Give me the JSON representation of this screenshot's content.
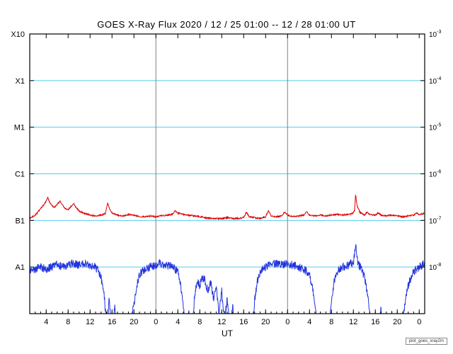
{
  "chart_data": {
    "type": "line",
    "title": "GOES X-Ray Flux   2020 / 12 / 25   01:00 -- 12 / 28   01:00  UT",
    "xlabel": "UT",
    "watermark": "plot_goes_xray2m",
    "x_range_hours": [
      0,
      72
    ],
    "y_log_range": [
      -3,
      -9
    ],
    "grid": "on",
    "legend": "none",
    "colors": {
      "red_series": "#dd0000",
      "blue_series": "#2233dd",
      "grid": "#55ccee",
      "day_line": "#808080",
      "axis": "#000000",
      "background": "#ffffff"
    },
    "y_ticks": [
      {
        "exp": "-3",
        "flux_class": "X10"
      },
      {
        "exp": "-4",
        "flux_class": "X1"
      },
      {
        "exp": "-5",
        "flux_class": "M1"
      },
      {
        "exp": "-6",
        "flux_class": "C1"
      },
      {
        "exp": "-7",
        "flux_class": "B1"
      },
      {
        "exp": "-8",
        "flux_class": "A1"
      }
    ],
    "x_ticks": [
      {
        "t": 3,
        "label": "4"
      },
      {
        "t": 7,
        "label": "8"
      },
      {
        "t": 11,
        "label": "12"
      },
      {
        "t": 15,
        "label": "16"
      },
      {
        "t": 19,
        "label": "20"
      },
      {
        "t": 23,
        "label": "0"
      },
      {
        "t": 27,
        "label": "4"
      },
      {
        "t": 31,
        "label": "8"
      },
      {
        "t": 35,
        "label": "12"
      },
      {
        "t": 39,
        "label": "16"
      },
      {
        "t": 43,
        "label": "20"
      },
      {
        "t": 47,
        "label": "0"
      },
      {
        "t": 51,
        "label": "4"
      },
      {
        "t": 55,
        "label": "8"
      },
      {
        "t": 59,
        "label": "12"
      },
      {
        "t": 63,
        "label": "16"
      },
      {
        "t": 67,
        "label": "20"
      },
      {
        "t": 71,
        "label": "0"
      }
    ],
    "day_boundaries": [
      23,
      47
    ],
    "series": [
      {
        "name": "red_line",
        "color_key": "red_series",
        "noise_decades": 0.015,
        "anchors": [
          [
            0,
            1.1e-07
          ],
          [
            0.5,
            1.2e-07
          ],
          [
            1,
            1.3e-07
          ],
          [
            1.5,
            1.5e-07
          ],
          [
            2,
            1.8e-07
          ],
          [
            2.5,
            2.1e-07
          ],
          [
            3,
            2.6e-07
          ],
          [
            3.3,
            3.1e-07
          ],
          [
            3.6,
            2.5e-07
          ],
          [
            4,
            2.1e-07
          ],
          [
            4.5,
            1.9e-07
          ],
          [
            5,
            2.2e-07
          ],
          [
            5.5,
            2.6e-07
          ],
          [
            6,
            2.1e-07
          ],
          [
            6.5,
            1.8e-07
          ],
          [
            7,
            1.7e-07
          ],
          [
            7.5,
            2e-07
          ],
          [
            8,
            2.3e-07
          ],
          [
            8.4,
            1.9e-07
          ],
          [
            9,
            1.6e-07
          ],
          [
            10,
            1.4e-07
          ],
          [
            11,
            1.3e-07
          ],
          [
            12,
            1.25e-07
          ],
          [
            13,
            1.3e-07
          ],
          [
            13.8,
            1.4e-07
          ],
          [
            14.2,
            2.4e-07
          ],
          [
            14.6,
            1.7e-07
          ],
          [
            15,
            1.45e-07
          ],
          [
            16,
            1.3e-07
          ],
          [
            17,
            1.25e-07
          ],
          [
            18,
            1.35e-07
          ],
          [
            19,
            1.3e-07
          ],
          [
            20,
            1.2e-07
          ],
          [
            21,
            1.2e-07
          ],
          [
            22,
            1.25e-07
          ],
          [
            23,
            1.2e-07
          ],
          [
            24,
            1.25e-07
          ],
          [
            25,
            1.3e-07
          ],
          [
            26,
            1.35e-07
          ],
          [
            26.5,
            1.6e-07
          ],
          [
            27,
            1.45e-07
          ],
          [
            28,
            1.35e-07
          ],
          [
            29,
            1.3e-07
          ],
          [
            30,
            1.25e-07
          ],
          [
            31,
            1.2e-07
          ],
          [
            32,
            1.15e-07
          ],
          [
            33,
            1.1e-07
          ],
          [
            34,
            1.1e-07
          ],
          [
            35,
            1.1e-07
          ],
          [
            36,
            1.15e-07
          ],
          [
            37,
            1.1e-07
          ],
          [
            38,
            1.1e-07
          ],
          [
            39,
            1.15e-07
          ],
          [
            39.5,
            1.5e-07
          ],
          [
            40,
            1.2e-07
          ],
          [
            41,
            1.15e-07
          ],
          [
            42,
            1.1e-07
          ],
          [
            43,
            1.2e-07
          ],
          [
            43.5,
            1.6e-07
          ],
          [
            44,
            1.25e-07
          ],
          [
            45,
            1.2e-07
          ],
          [
            46,
            1.25e-07
          ],
          [
            46.5,
            1.55e-07
          ],
          [
            47,
            1.3e-07
          ],
          [
            48,
            1.2e-07
          ],
          [
            49,
            1.25e-07
          ],
          [
            50,
            1.3e-07
          ],
          [
            50.5,
            1.55e-07
          ],
          [
            51,
            1.3e-07
          ],
          [
            52,
            1.25e-07
          ],
          [
            53,
            1.3e-07
          ],
          [
            54,
            1.25e-07
          ],
          [
            55,
            1.3e-07
          ],
          [
            56,
            1.35e-07
          ],
          [
            57,
            1.3e-07
          ],
          [
            58,
            1.35e-07
          ],
          [
            58.8,
            1.4e-07
          ],
          [
            59.2,
            1.6e-07
          ],
          [
            59.4,
            3.6e-07
          ],
          [
            59.7,
            2e-07
          ],
          [
            60.2,
            1.5e-07
          ],
          [
            61,
            1.3e-07
          ],
          [
            61.5,
            1.5e-07
          ],
          [
            62,
            1.35e-07
          ],
          [
            63,
            1.3e-07
          ],
          [
            63.5,
            1.45e-07
          ],
          [
            64,
            1.3e-07
          ],
          [
            65,
            1.25e-07
          ],
          [
            66,
            1.3e-07
          ],
          [
            67,
            1.25e-07
          ],
          [
            68,
            1.2e-07
          ],
          [
            69,
            1.25e-07
          ],
          [
            70,
            1.3e-07
          ],
          [
            70.5,
            1.45e-07
          ],
          [
            71,
            1.35e-07
          ],
          [
            72,
            1.4e-07
          ]
        ]
      },
      {
        "name": "blue_line",
        "color_key": "blue_series",
        "noise_decades": 0.09,
        "anchors": [
          [
            0,
            8e-09
          ],
          [
            1,
            9e-09
          ],
          [
            2,
            1e-08
          ],
          [
            3,
            9e-09
          ],
          [
            4,
            1e-08
          ],
          [
            5,
            1.1e-08
          ],
          [
            6,
            1e-08
          ],
          [
            7,
            1.1e-08
          ],
          [
            8,
            1.2e-08
          ],
          [
            9,
            1.1e-08
          ],
          [
            10,
            1.2e-08
          ],
          [
            11,
            1.1e-08
          ],
          [
            12,
            1e-08
          ],
          [
            12.5,
            8e-09
          ],
          [
            13,
            6e-09
          ],
          [
            13.5,
            3e-09
          ],
          [
            14,
            6e-10
          ],
          [
            14.5,
            2e-09
          ],
          [
            15,
            4e-10
          ],
          [
            15.5,
            1.5e-09
          ],
          [
            16,
            3e-10
          ],
          [
            16.5,
            9e-10
          ],
          [
            17,
            3e-10
          ],
          [
            17.5,
            8e-10
          ],
          [
            18,
            3e-10
          ],
          [
            18.5,
            7e-10
          ],
          [
            19,
            1.5e-09
          ],
          [
            19.5,
            4e-09
          ],
          [
            20,
            7e-09
          ],
          [
            21,
            9e-09
          ],
          [
            22,
            1e-08
          ],
          [
            23,
            1.1e-08
          ],
          [
            24,
            1.2e-08
          ],
          [
            25,
            1.1e-08
          ],
          [
            26,
            1e-08
          ],
          [
            27,
            8e-09
          ],
          [
            27.5,
            4e-09
          ],
          [
            28,
            1.5e-09
          ],
          [
            28.5,
            3e-10
          ],
          [
            29,
            1e-09
          ],
          [
            29.5,
            3e-10
          ],
          [
            30,
            2e-09
          ],
          [
            30.5,
            5e-09
          ],
          [
            31,
            4e-09
          ],
          [
            31.5,
            6e-09
          ],
          [
            32,
            5e-09
          ],
          [
            32.5,
            3e-09
          ],
          [
            33,
            5e-09
          ],
          [
            33.5,
            2e-09
          ],
          [
            34,
            4e-09
          ],
          [
            34.5,
            1e-09
          ],
          [
            35,
            3e-09
          ],
          [
            35.5,
            8e-10
          ],
          [
            36,
            2e-09
          ],
          [
            36.5,
            4e-10
          ],
          [
            37,
            1.5e-09
          ],
          [
            37.5,
            3e-10
          ],
          [
            38,
            8e-10
          ],
          [
            38.5,
            3e-10
          ],
          [
            39,
            5e-10
          ],
          [
            39.5,
            3e-10
          ],
          [
            40,
            1e-09
          ],
          [
            40.5,
            4e-10
          ],
          [
            41,
            2e-09
          ],
          [
            41.5,
            5e-09
          ],
          [
            42,
            8e-09
          ],
          [
            43,
            1e-08
          ],
          [
            44,
            1.1e-08
          ],
          [
            45,
            1.2e-08
          ],
          [
            46,
            1.1e-08
          ],
          [
            47,
            1.2e-08
          ],
          [
            48,
            1.1e-08
          ],
          [
            49,
            1e-08
          ],
          [
            50,
            9e-09
          ],
          [
            51,
            7e-09
          ],
          [
            51.5,
            4e-09
          ],
          [
            52,
            1.5e-09
          ],
          [
            52.5,
            4e-10
          ],
          [
            53,
            1e-09
          ],
          [
            53.5,
            3e-10
          ],
          [
            54,
            8e-10
          ],
          [
            54.5,
            3e-10
          ],
          [
            55,
            2e-09
          ],
          [
            55.5,
            5e-09
          ],
          [
            56,
            8e-09
          ],
          [
            57,
            1e-08
          ],
          [
            58,
            1.1e-08
          ],
          [
            58.5,
            1.2e-08
          ],
          [
            59,
            1.15e-08
          ],
          [
            59.4,
            3e-08
          ],
          [
            59.7,
            1.4e-08
          ],
          [
            60,
            1.1e-08
          ],
          [
            60.5,
            9e-09
          ],
          [
            61,
            6e-09
          ],
          [
            61.5,
            3e-09
          ],
          [
            62,
            1e-09
          ],
          [
            62.5,
            3e-10
          ],
          [
            63,
            8e-10
          ],
          [
            63.5,
            3e-10
          ],
          [
            64,
            1.2e-09
          ],
          [
            64.5,
            3e-10
          ],
          [
            65,
            6e-10
          ],
          [
            65.5,
            3e-10
          ],
          [
            66,
            1e-09
          ],
          [
            66.5,
            3e-10
          ],
          [
            67,
            5e-10
          ],
          [
            67.5,
            3e-10
          ],
          [
            68,
            8e-10
          ],
          [
            68.5,
            2e-09
          ],
          [
            69,
            4e-09
          ],
          [
            69.5,
            6e-09
          ],
          [
            70,
            8e-09
          ],
          [
            70.5,
            9e-09
          ],
          [
            71,
            1e-08
          ],
          [
            71.5,
            1.1e-08
          ],
          [
            72,
            1.2e-08
          ]
        ]
      }
    ]
  }
}
